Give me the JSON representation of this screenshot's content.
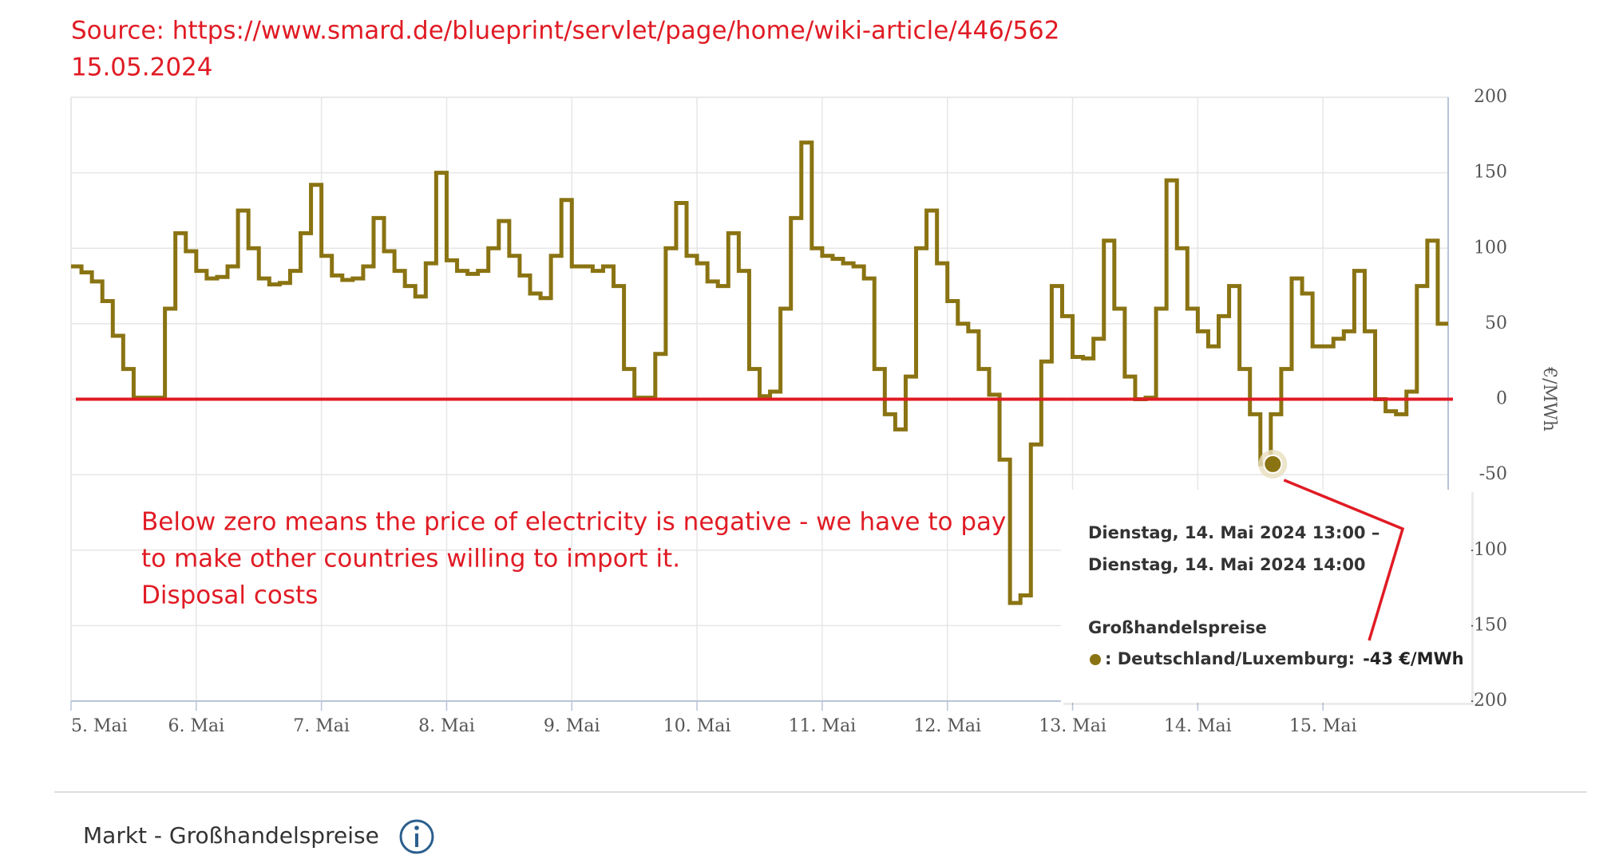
{
  "chart_data": {
    "type": "line",
    "source": "Source: https://www.smard.de/blueprint/servlet/page/home/wiki-article/446/562",
    "date": "15.05.2024",
    "y_label": "€/MWh",
    "x": [
      0,
      2,
      4,
      6,
      8,
      10,
      12,
      14,
      16,
      18,
      20,
      22,
      24,
      26,
      28,
      30,
      32,
      34,
      36,
      38,
      40,
      42,
      44,
      46,
      48,
      50,
      52,
      54,
      56,
      58,
      60,
      62,
      64,
      66,
      68,
      70,
      72,
      74,
      76,
      78,
      80,
      82,
      84,
      86,
      88,
      90,
      92,
      94,
      96,
      98,
      100,
      102,
      104,
      106,
      108,
      110,
      112,
      114,
      116,
      118,
      120,
      122,
      124,
      126,
      128,
      130,
      132,
      134,
      136,
      138,
      140,
      142,
      144,
      146,
      148,
      150,
      152,
      154,
      156,
      158,
      160,
      162,
      164,
      166,
      168,
      170,
      172,
      174,
      176,
      178,
      180,
      182,
      184,
      186,
      188,
      190,
      192,
      194,
      196,
      198,
      200,
      202,
      204,
      206,
      208,
      210,
      212,
      214,
      216,
      218,
      220,
      222,
      224,
      226,
      228,
      230,
      232,
      234,
      236,
      238,
      240,
      242,
      244,
      246,
      248,
      250,
      252,
      254,
      256,
      258,
      260,
      262
    ],
    "series": [
      {
        "name": "Deutschland/Luxemburg",
        "color": "#8a7312",
        "values": [
          88,
          84,
          78,
          65,
          42,
          20,
          1,
          1,
          1,
          60,
          110,
          98,
          85,
          80,
          81,
          88,
          125,
          100,
          80,
          76,
          77,
          85,
          110,
          142,
          95,
          82,
          79,
          80,
          88,
          120,
          98,
          85,
          75,
          68,
          90,
          150,
          92,
          85,
          83,
          85,
          100,
          118,
          95,
          82,
          70,
          67,
          95,
          132,
          88,
          88,
          85,
          88,
          75,
          20,
          1,
          1,
          30,
          100,
          130,
          95,
          90,
          78,
          75,
          110,
          85,
          20,
          2,
          5,
          60,
          120,
          170,
          100,
          95,
          93,
          90,
          88,
          80,
          20,
          -10,
          -20,
          15,
          100,
          125,
          90,
          65,
          50,
          45,
          20,
          3,
          -40,
          -135,
          -130,
          -30,
          25,
          75,
          55,
          28,
          27,
          40,
          105,
          60,
          15,
          0,
          1,
          60,
          145,
          100,
          60,
          45,
          35,
          55,
          75,
          20,
          -10,
          -43,
          -10,
          20,
          80,
          70,
          35,
          35,
          40,
          45,
          85,
          45,
          0,
          -8,
          -10,
          5,
          75,
          105,
          50
        ]
      }
    ],
    "xlim": [
      0,
      264
    ],
    "xticks": [
      {
        "value": 0,
        "label": "5. Mai"
      },
      {
        "value": 24,
        "label": "6. Mai"
      },
      {
        "value": 48,
        "label": "7. Mai"
      },
      {
        "value": 72,
        "label": "8. Mai"
      },
      {
        "value": 96,
        "label": "9. Mai"
      },
      {
        "value": 120,
        "label": "10. Mai"
      },
      {
        "value": 144,
        "label": "11. Mai"
      },
      {
        "value": 168,
        "label": "12. Mai"
      },
      {
        "value": 192,
        "label": "13. Mai"
      },
      {
        "value": 216,
        "label": "14. Mai"
      },
      {
        "value": 240,
        "label": "15. Mai"
      }
    ],
    "ylim": [
      -200,
      200
    ],
    "yticks": [
      -200,
      -150,
      -100,
      -50,
      0,
      50,
      100,
      150,
      200
    ],
    "grid": true,
    "reference_line": {
      "value": 0,
      "color": "#e01b24"
    },
    "annotation": [
      "Below zero means the price of electricity is negative - we have to pay",
      "to make other countries willing to import it.",
      "Disposal costs"
    ],
    "tooltip": {
      "lines": [
        "Dienstag, 14. Mai 2024 13:00 –",
        "Dienstag, 14. Mai 2024 14:00"
      ],
      "heading": "Großhandelspreise",
      "item": ": Deutschland/Luxemburg:",
      "x": 229,
      "value": -43,
      "value_label": "-43 €/MWh"
    }
  },
  "footer": {
    "title": "Markt - Großhandelspreise"
  }
}
